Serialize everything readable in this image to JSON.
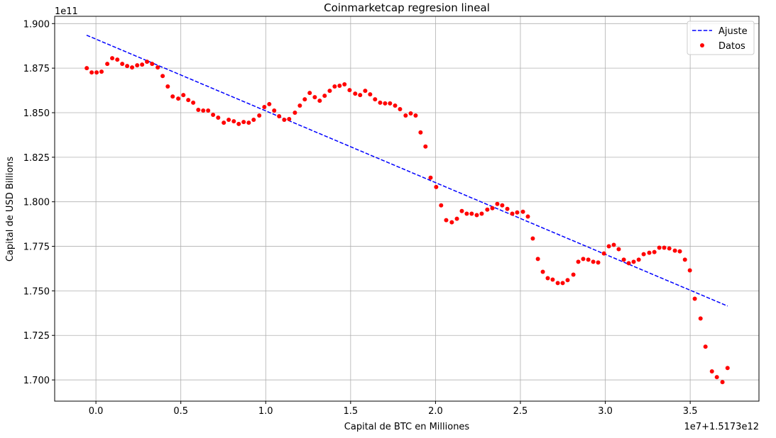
{
  "chart_data": {
    "type": "scatter",
    "title": "Coinmarketcap regresion lineal",
    "xlabel": "Capital de BTC en Milliones",
    "ylabel": "Capital de USD Billions",
    "x_offset_text": "1e7+1.5173e12",
    "y_offset_text": "1e11",
    "xlim": [
      -0.243,
      3.905
    ],
    "ylim": [
      1.6881,
      1.9041
    ],
    "xticks": [
      "0.0",
      "0.5",
      "1.0",
      "1.5",
      "2.0",
      "2.5",
      "3.0",
      "3.5"
    ],
    "yticks": [
      "1.700",
      "1.725",
      "1.750",
      "1.775",
      "1.800",
      "1.825",
      "1.850",
      "1.875",
      "1.900"
    ],
    "grid": true,
    "legend_position": "top-right",
    "series": [
      {
        "name": "Ajuste",
        "kind": "line",
        "style": "dashed",
        "color": "#0000ff",
        "x": [
          -0.055,
          3.72
        ],
        "y": [
          1.8935,
          1.7415
        ]
      },
      {
        "name": "Datos",
        "kind": "scatter",
        "color": "#ff0000",
        "x": [
          -0.054,
          -0.025,
          0.004,
          0.033,
          0.067,
          0.096,
          0.126,
          0.155,
          0.184,
          0.213,
          0.243,
          0.272,
          0.301,
          0.331,
          0.364,
          0.393,
          0.423,
          0.452,
          0.485,
          0.515,
          0.544,
          0.573,
          0.603,
          0.632,
          0.661,
          0.69,
          0.72,
          0.753,
          0.782,
          0.812,
          0.841,
          0.87,
          0.9,
          0.929,
          0.962,
          0.992,
          1.021,
          1.05,
          1.079,
          1.109,
          1.138,
          1.172,
          1.201,
          1.23,
          1.259,
          1.289,
          1.318,
          1.347,
          1.377,
          1.406,
          1.435,
          1.464,
          1.494,
          1.527,
          1.556,
          1.586,
          1.615,
          1.644,
          1.674,
          1.703,
          1.732,
          1.762,
          1.791,
          1.824,
          1.854,
          1.883,
          1.912,
          1.941,
          1.971,
          2.004,
          2.033,
          2.063,
          2.096,
          2.126,
          2.155,
          2.184,
          2.213,
          2.243,
          2.272,
          2.305,
          2.335,
          2.364,
          2.393,
          2.423,
          2.452,
          2.481,
          2.515,
          2.544,
          2.573,
          2.603,
          2.632,
          2.661,
          2.69,
          2.72,
          2.749,
          2.778,
          2.812,
          2.841,
          2.87,
          2.9,
          2.929,
          2.958,
          2.992,
          3.021,
          3.05,
          3.079,
          3.109,
          3.138,
          3.167,
          3.197,
          3.226,
          3.259,
          3.289,
          3.318,
          3.347,
          3.377,
          3.41,
          3.439,
          3.469,
          3.498,
          3.527,
          3.561,
          3.59,
          3.628,
          3.657,
          3.69,
          3.72
        ],
        "y": [
          1.875,
          1.8726,
          1.8726,
          1.873,
          1.8774,
          1.8806,
          1.8798,
          1.8774,
          1.8762,
          1.8754,
          1.8766,
          1.877,
          1.8786,
          1.8774,
          1.8754,
          1.8706,
          1.8647,
          1.8591,
          1.8579,
          1.8599,
          1.8571,
          1.8556,
          1.8516,
          1.8512,
          1.8512,
          1.8488,
          1.8472,
          1.8444,
          1.846,
          1.8452,
          1.8437,
          1.8448,
          1.8444,
          1.846,
          1.8484,
          1.8532,
          1.8548,
          1.8512,
          1.848,
          1.846,
          1.8464,
          1.85,
          1.854,
          1.8575,
          1.8611,
          1.8587,
          1.8567,
          1.8595,
          1.8623,
          1.8647,
          1.8651,
          1.8659,
          1.8627,
          1.8607,
          1.8599,
          1.8623,
          1.8603,
          1.8575,
          1.8556,
          1.8552,
          1.8552,
          1.854,
          1.852,
          1.8484,
          1.8496,
          1.8484,
          1.8389,
          1.831,
          1.8135,
          1.8083,
          1.798,
          1.7897,
          1.7885,
          1.7905,
          1.7948,
          1.7933,
          1.7933,
          1.7925,
          1.7933,
          1.7956,
          1.7964,
          1.7988,
          1.798,
          1.796,
          1.7933,
          1.794,
          1.7944,
          1.7917,
          1.7794,
          1.7679,
          1.7607,
          1.7571,
          1.7563,
          1.7544,
          1.7544,
          1.756,
          1.7591,
          1.7663,
          1.7679,
          1.7675,
          1.7663,
          1.7659,
          1.771,
          1.775,
          1.7758,
          1.7734,
          1.7675,
          1.7655,
          1.7663,
          1.7675,
          1.7706,
          1.7714,
          1.7718,
          1.7742,
          1.7742,
          1.7738,
          1.7726,
          1.7722,
          1.7675,
          1.7615,
          1.7456,
          1.7345,
          1.7187,
          1.7048,
          1.7016,
          1.6988,
          1.7067
        ]
      }
    ]
  }
}
